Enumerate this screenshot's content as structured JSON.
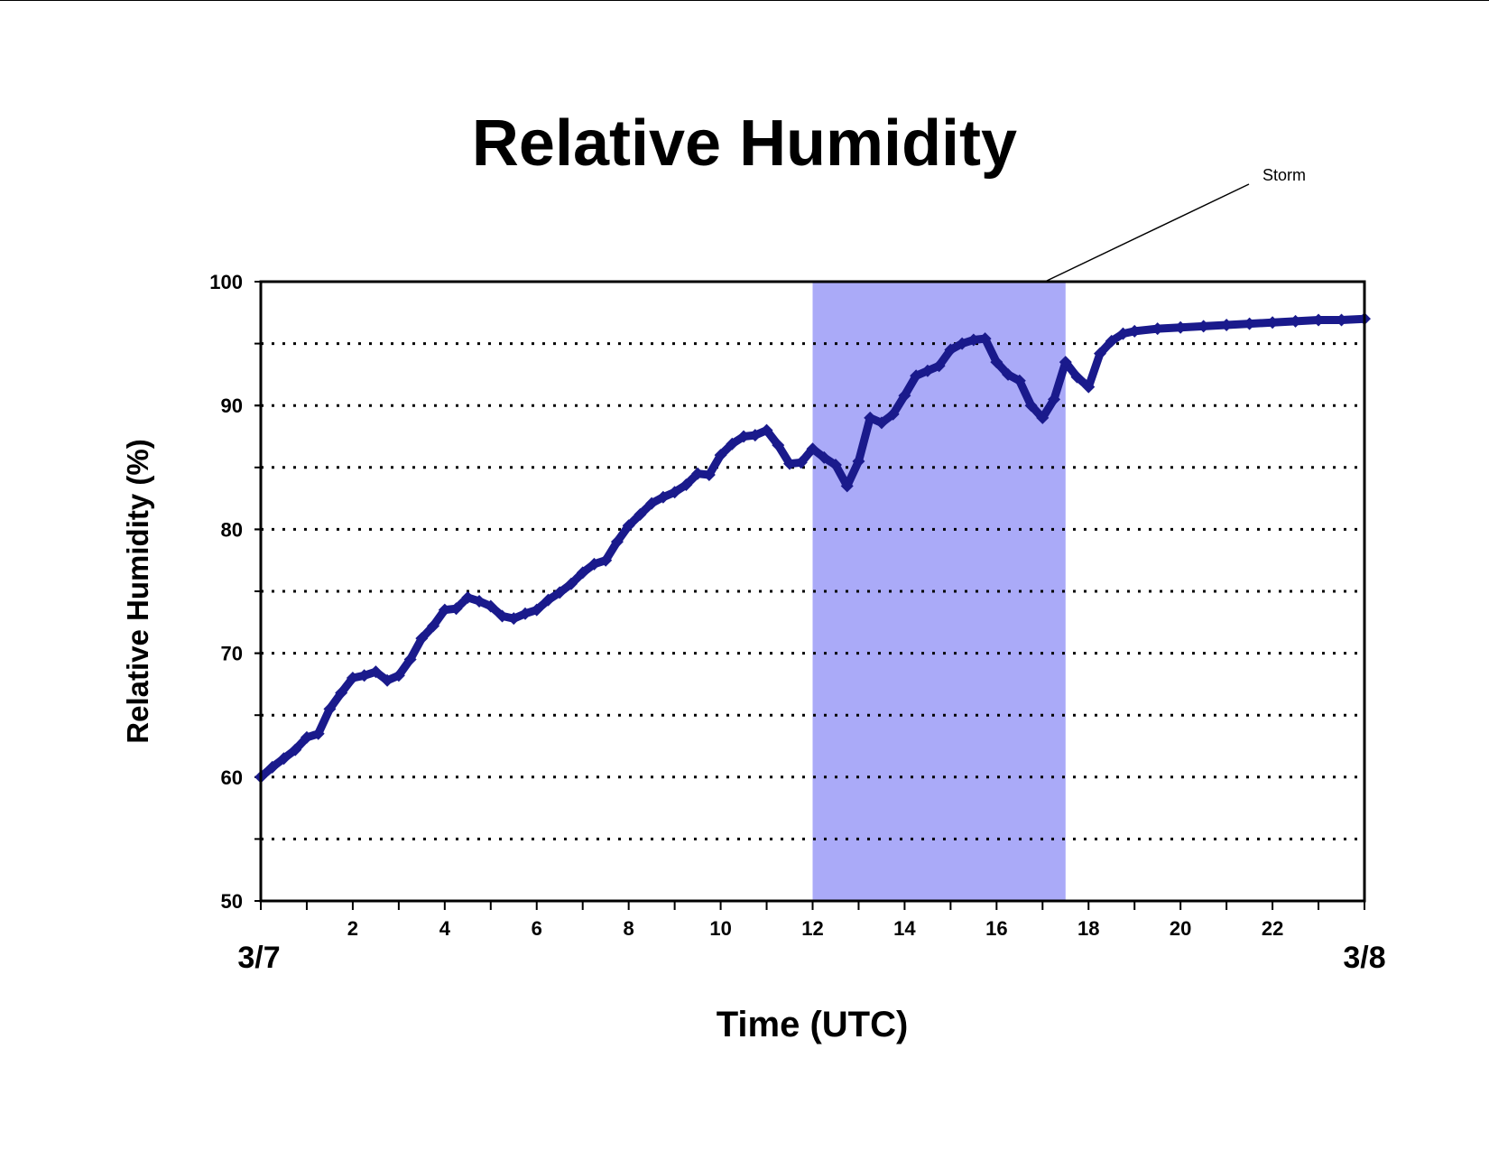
{
  "chart_data": {
    "type": "scatter",
    "title": "Relative Humidity",
    "xlabel": "Time (UTC)",
    "ylabel": "Relative Humidity (%)",
    "xlim": [
      0,
      24
    ],
    "ylim": [
      50,
      100
    ],
    "x_ticks": [
      2,
      4,
      6,
      8,
      10,
      12,
      14,
      16,
      18,
      20,
      22
    ],
    "x_minor_step": 1,
    "y_ticks": [
      50,
      60,
      70,
      80,
      90,
      100
    ],
    "y_grid": [
      55,
      60,
      65,
      70,
      75,
      80,
      85,
      90,
      95
    ],
    "grid": "horizontal dotted",
    "date_labels": {
      "start": "3/7",
      "end": "3/8"
    },
    "marker": "diamond",
    "series_color": "#1a1a8c",
    "shaded_region": {
      "x_start": 12,
      "x_end": 17.5,
      "label": "Storm",
      "color": "#aaaaf8"
    },
    "series": [
      {
        "x": [
          0,
          0.25,
          0.5,
          0.75,
          1.0,
          1.25,
          1.5,
          1.75,
          2.0,
          2.25,
          2.5,
          2.75,
          3.0,
          3.25,
          3.5,
          3.75,
          4.0,
          4.25,
          4.5,
          4.75,
          5.0,
          5.25,
          5.5,
          5.75,
          6.0,
          6.25,
          6.5,
          6.75,
          7.0,
          7.25,
          7.5,
          7.75,
          8.0,
          8.25,
          8.5,
          8.75,
          9.0,
          9.25,
          9.5,
          9.75,
          10.0,
          10.25,
          10.5,
          10.75,
          11.0,
          11.25,
          11.5,
          11.75,
          12.0,
          12.25,
          12.5,
          12.75,
          13.0,
          13.25,
          13.5,
          13.75,
          14.0,
          14.25,
          14.5,
          14.75,
          15.0,
          15.25,
          15.5,
          15.75,
          16.0,
          16.25,
          16.5,
          16.75,
          17.0,
          17.25,
          17.5,
          17.75,
          18.0,
          18.25,
          18.5,
          18.75,
          19.0,
          19.5,
          20.0,
          20.5,
          21.0,
          21.5,
          22.0,
          22.5,
          23.0,
          23.5,
          24.0
        ],
        "y": [
          60,
          60.8,
          61.5,
          62.2,
          63.2,
          63.5,
          65.5,
          66.8,
          68,
          68.2,
          68.5,
          67.8,
          68.2,
          69.5,
          71.2,
          72.2,
          73.5,
          73.6,
          74.5,
          74.2,
          73.8,
          73,
          72.8,
          73.2,
          73.5,
          74.3,
          74.9,
          75.6,
          76.5,
          77.2,
          77.5,
          79,
          80.3,
          81.2,
          82.1,
          82.6,
          83.0,
          83.6,
          84.5,
          84.4,
          86,
          86.9,
          87.5,
          87.6,
          88.0,
          86.8,
          85.3,
          85.4,
          86.5,
          85.8,
          85.2,
          83.5,
          85.5,
          89,
          88.6,
          89.3,
          90.8,
          92.4,
          92.8,
          93.2,
          94.5,
          95.0,
          95.3,
          95.4,
          93.5,
          92.5,
          92.0,
          90.0,
          89.0,
          90.5,
          93.5,
          92.3,
          91.5,
          94.2,
          95.2,
          95.8,
          96.0,
          96.2,
          96.3,
          96.4,
          96.5,
          96.6,
          96.7,
          96.8,
          96.9,
          96.9,
          97.0
        ]
      }
    ]
  }
}
